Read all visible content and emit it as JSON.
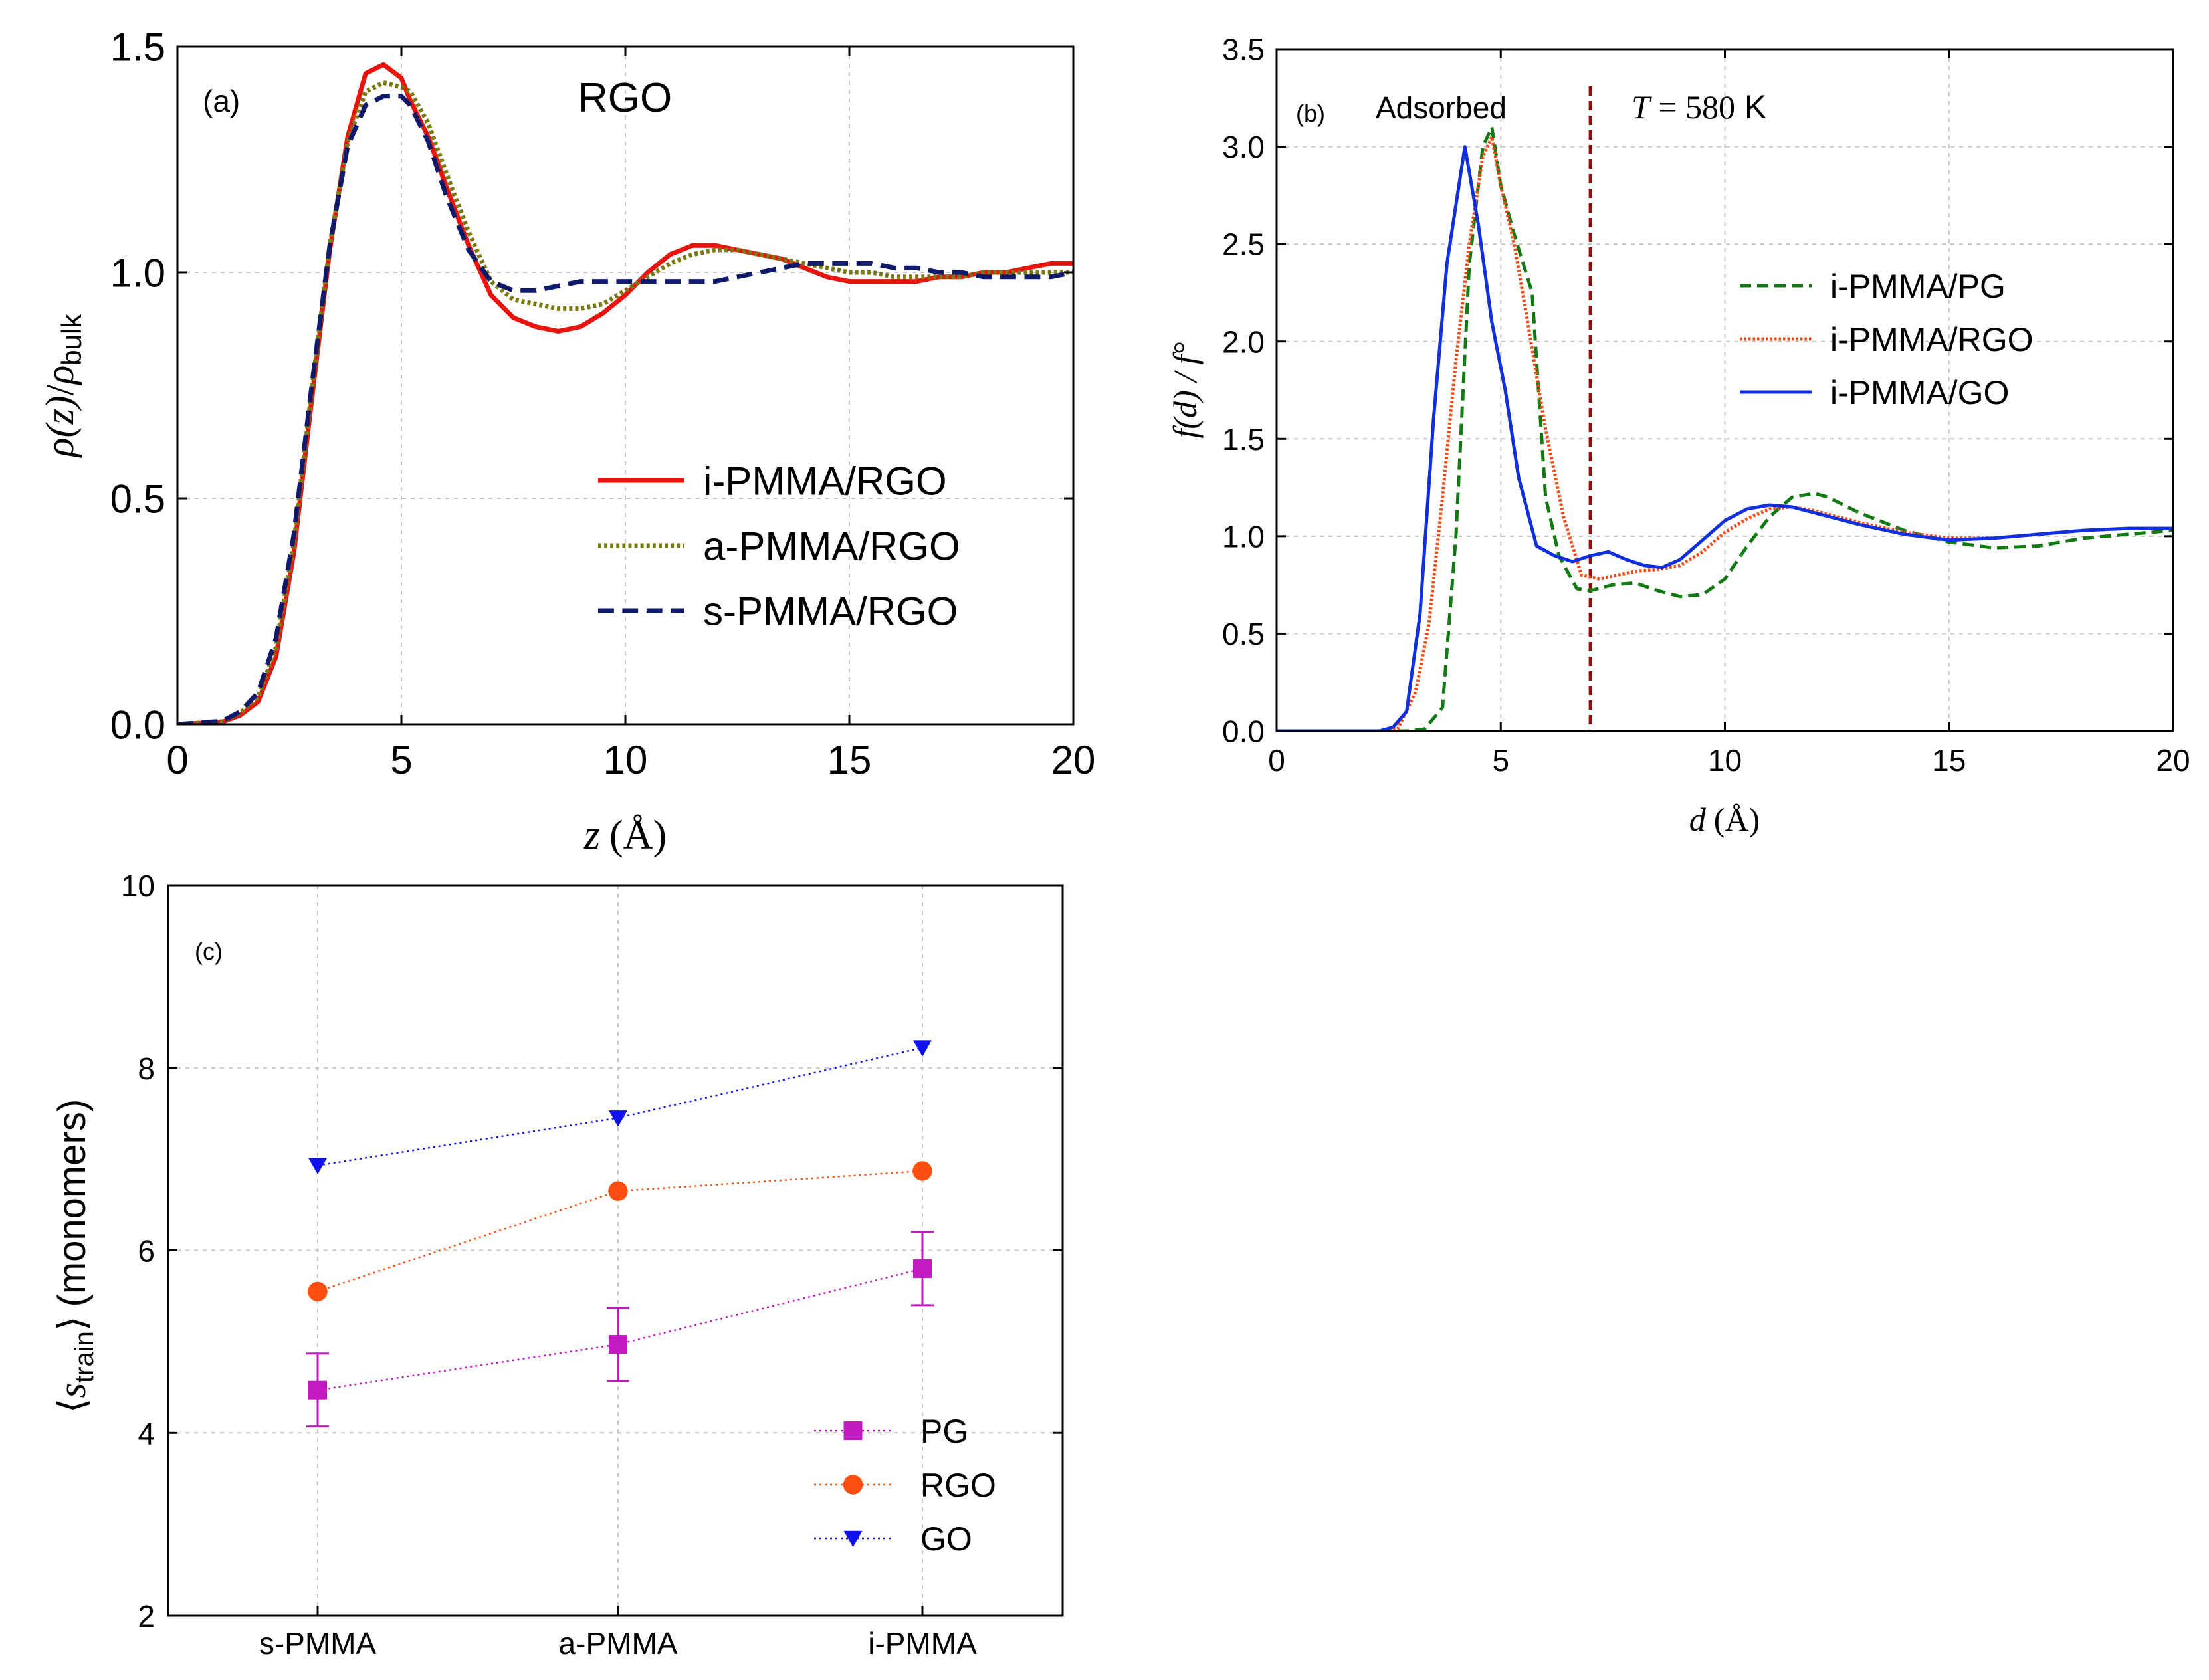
{
  "chart_data": [
    {
      "panel": "a",
      "type": "line",
      "label": "(a)",
      "annotation": {
        "text": "RGO",
        "color": "#e41ad6"
      },
      "xlabel": {
        "var": "z",
        "unit": "(Å)"
      },
      "ylabel": {
        "main": "ρ(z)",
        "sep": "/",
        "denom": "ρ",
        "sub": "bulk"
      },
      "xlim": [
        0,
        20
      ],
      "ylim": [
        0,
        1.5
      ],
      "xticks": [
        "0",
        "5",
        "10",
        "15",
        "20"
      ],
      "yticks": [
        "0.0",
        "0.5",
        "1.0",
        "1.5"
      ],
      "grid": true,
      "legend": "bottom-right",
      "series": [
        {
          "name": "i-PMMA/RGO",
          "color": "#e8150f",
          "dash": "solid",
          "width": 7,
          "x": [
            0,
            1.0,
            1.4,
            1.8,
            2.2,
            2.6,
            3.0,
            3.4,
            3.8,
            4.2,
            4.6,
            5.0,
            5.2,
            5.6,
            6.0,
            6.5,
            7.0,
            7.5,
            8.0,
            8.5,
            9.0,
            9.5,
            10.0,
            10.5,
            11.0,
            11.5,
            12.0,
            12.5,
            13.0,
            13.5,
            14.0,
            14.5,
            15.0,
            15.5,
            16.0,
            16.5,
            17.0,
            17.5,
            18.0,
            18.5,
            19.0,
            19.5,
            20.0
          ],
          "y": [
            0,
            0.005,
            0.02,
            0.05,
            0.15,
            0.38,
            0.72,
            1.05,
            1.3,
            1.44,
            1.46,
            1.43,
            1.38,
            1.3,
            1.19,
            1.06,
            0.95,
            0.9,
            0.88,
            0.87,
            0.88,
            0.91,
            0.95,
            1.0,
            1.04,
            1.06,
            1.06,
            1.05,
            1.04,
            1.03,
            1.01,
            0.99,
            0.98,
            0.98,
            0.98,
            0.98,
            0.99,
            0.99,
            1.0,
            1.0,
            1.01,
            1.02,
            1.02
          ]
        },
        {
          "name": "a-PMMA/RGO",
          "color": "#7a7a12",
          "dash": "dot",
          "width": 7,
          "x": [
            0,
            1.0,
            1.4,
            1.8,
            2.2,
            2.6,
            3.0,
            3.4,
            3.8,
            4.2,
            4.6,
            5.0,
            5.2,
            5.6,
            6.0,
            6.5,
            7.0,
            7.5,
            8.0,
            8.5,
            9.0,
            9.5,
            10.0,
            10.5,
            11.0,
            11.5,
            12.0,
            12.5,
            13.0,
            13.5,
            14.0,
            14.5,
            15.0,
            15.5,
            16.0,
            16.5,
            17.0,
            17.5,
            18.0,
            18.5,
            19.0,
            19.5,
            20.0
          ],
          "y": [
            0,
            0.006,
            0.025,
            0.06,
            0.17,
            0.4,
            0.74,
            1.06,
            1.29,
            1.4,
            1.42,
            1.41,
            1.4,
            1.33,
            1.22,
            1.09,
            0.98,
            0.94,
            0.93,
            0.92,
            0.92,
            0.93,
            0.96,
            0.99,
            1.02,
            1.04,
            1.05,
            1.05,
            1.04,
            1.03,
            1.02,
            1.01,
            1.0,
            1.0,
            0.99,
            0.99,
            0.99,
            0.99,
            1.0,
            1.0,
            1.0,
            1.0,
            1.0
          ]
        },
        {
          "name": "s-PMMA/RGO",
          "color": "#101a6b",
          "dash": "dash",
          "width": 7,
          "x": [
            0,
            1.0,
            1.4,
            1.8,
            2.2,
            2.6,
            3.0,
            3.4,
            3.8,
            4.2,
            4.6,
            5.0,
            5.2,
            5.6,
            6.0,
            6.5,
            7.0,
            7.5,
            8.0,
            8.5,
            9.0,
            9.5,
            10.0,
            10.5,
            11.0,
            11.5,
            12.0,
            12.5,
            13.0,
            13.5,
            14.0,
            14.5,
            15.0,
            15.5,
            16.0,
            16.5,
            17.0,
            17.5,
            18.0,
            18.5,
            19.0,
            19.5,
            20.0
          ],
          "y": [
            0,
            0.007,
            0.028,
            0.07,
            0.19,
            0.42,
            0.75,
            1.06,
            1.28,
            1.37,
            1.39,
            1.39,
            1.37,
            1.29,
            1.17,
            1.05,
            0.98,
            0.96,
            0.96,
            0.97,
            0.98,
            0.98,
            0.98,
            0.98,
            0.98,
            0.98,
            0.98,
            0.99,
            1.0,
            1.01,
            1.02,
            1.02,
            1.02,
            1.02,
            1.01,
            1.01,
            1.0,
            1.0,
            0.99,
            0.99,
            0.99,
            0.99,
            1.0
          ]
        }
      ]
    },
    {
      "panel": "b",
      "type": "line",
      "label": "(b)",
      "annotations": {
        "adsorbed": {
          "text": "Adsorbed",
          "color": "#8b0d0d"
        },
        "temperature": {
          "var": "T",
          "eq": " = 580",
          "unit": " K",
          "color": "#e41ad6"
        },
        "vline": {
          "x": 7,
          "color": "#8b0d0d"
        }
      },
      "xlabel": {
        "var": "d",
        "unit": "(Å)"
      },
      "ylabel": {
        "text": "f(d) / f°"
      },
      "xlim": [
        0,
        20
      ],
      "ylim": [
        0,
        3.5
      ],
      "xticks": [
        "0",
        "5",
        "10",
        "15",
        "20"
      ],
      "yticks": [
        "0.0",
        "0.5",
        "1.0",
        "1.5",
        "2.0",
        "2.5",
        "3.0",
        "3.5"
      ],
      "grid": true,
      "legend": "center-right",
      "series": [
        {
          "name": "i-PMMA/PG",
          "color": "#127a12",
          "dash": "dash",
          "width": 5,
          "x": [
            0,
            2.5,
            2.9,
            3.3,
            3.7,
            4.0,
            4.3,
            4.6,
            4.8,
            5.0,
            5.3,
            5.7,
            6.0,
            6.3,
            6.7,
            7.0,
            7.5,
            8.0,
            8.5,
            9.0,
            9.5,
            10.0,
            10.5,
            11.0,
            11.5,
            12.0,
            12.3,
            13.0,
            14.0,
            15.0,
            16.0,
            17.0,
            18.0,
            19.0,
            20.0
          ],
          "y": [
            0,
            0,
            0,
            0.01,
            0.12,
            1.0,
            2.4,
            3.0,
            3.1,
            2.8,
            2.55,
            2.25,
            1.2,
            0.9,
            0.73,
            0.72,
            0.75,
            0.76,
            0.72,
            0.69,
            0.7,
            0.78,
            0.95,
            1.1,
            1.2,
            1.22,
            1.2,
            1.12,
            1.03,
            0.97,
            0.94,
            0.95,
            0.99,
            1.01,
            1.03
          ]
        },
        {
          "name": "i-PMMA/RGO",
          "color": "#f04a16",
          "dash": "dot",
          "width": 5,
          "x": [
            0,
            2.4,
            2.7,
            3.1,
            3.4,
            3.7,
            4.0,
            4.3,
            4.6,
            4.8,
            5.0,
            5.3,
            5.6,
            6.0,
            6.4,
            6.8,
            7.2,
            7.6,
            8.0,
            8.5,
            9.0,
            9.5,
            10.0,
            10.5,
            11.0,
            11.5,
            12.0,
            12.5,
            13.0,
            14.0,
            15.0,
            16.0,
            17.0,
            18.0,
            19.0,
            20.0
          ],
          "y": [
            0,
            0,
            0.01,
            0.2,
            0.55,
            1.2,
            1.9,
            2.5,
            2.95,
            3.05,
            2.8,
            2.5,
            2.1,
            1.55,
            1.1,
            0.8,
            0.78,
            0.8,
            0.82,
            0.83,
            0.85,
            0.92,
            1.02,
            1.09,
            1.14,
            1.15,
            1.13,
            1.1,
            1.07,
            1.02,
            0.99,
            0.99,
            1.01,
            1.03,
            1.04,
            1.04
          ]
        },
        {
          "name": "i-PMMA/GO",
          "color": "#1030e0",
          "dash": "solid",
          "width": 5,
          "x": [
            0,
            2.0,
            2.3,
            2.6,
            2.9,
            3.2,
            3.5,
            3.8,
            4.2,
            4.5,
            4.8,
            5.1,
            5.4,
            5.8,
            6.2,
            6.6,
            7.0,
            7.4,
            7.8,
            8.2,
            8.6,
            9.0,
            9.5,
            10.0,
            10.5,
            11.0,
            11.5,
            12.0,
            12.5,
            13.0,
            14.0,
            15.0,
            16.0,
            17.0,
            18.0,
            19.0,
            20.0
          ],
          "y": [
            0,
            0,
            0,
            0.02,
            0.1,
            0.6,
            1.6,
            2.4,
            3.0,
            2.6,
            2.1,
            1.75,
            1.3,
            0.95,
            0.9,
            0.87,
            0.9,
            0.92,
            0.88,
            0.85,
            0.84,
            0.88,
            0.98,
            1.08,
            1.14,
            1.16,
            1.15,
            1.12,
            1.09,
            1.06,
            1.01,
            0.98,
            0.99,
            1.01,
            1.03,
            1.04,
            1.04
          ]
        }
      ]
    },
    {
      "panel": "c",
      "type": "scatter",
      "label": "(c)",
      "categories": [
        "s-PMMA",
        "a-PMMA",
        "i-PMMA"
      ],
      "ylabel": {
        "sym": "s",
        "sub": "train",
        "unit": "(monomers)"
      },
      "ylim": [
        2,
        10
      ],
      "yticks": [
        "2",
        "4",
        "6",
        "8",
        "10"
      ],
      "grid": true,
      "legend": "bottom-right",
      "series": [
        {
          "name": "PG",
          "color": "#c21ac2",
          "marker": "square",
          "values": [
            4.47,
            4.97,
            5.8
          ],
          "errors": [
            0.4,
            0.4,
            0.4
          ]
        },
        {
          "name": "RGO",
          "color": "#ff4f10",
          "marker": "circle",
          "values": [
            5.55,
            6.65,
            6.87
          ]
        },
        {
          "name": "GO",
          "color": "#0f10ee",
          "marker": "triangle",
          "values": [
            6.93,
            7.45,
            8.22
          ]
        }
      ]
    }
  ]
}
